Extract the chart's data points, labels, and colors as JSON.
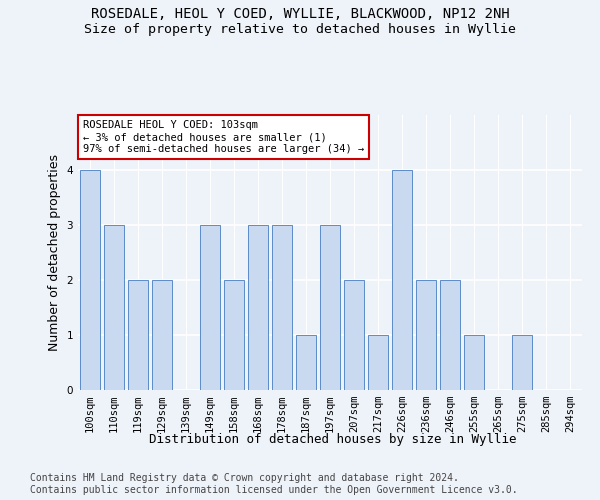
{
  "title1": "ROSEDALE, HEOL Y COED, WYLLIE, BLACKWOOD, NP12 2NH",
  "title2": "Size of property relative to detached houses in Wyllie",
  "xlabel": "Distribution of detached houses by size in Wyllie",
  "ylabel": "Number of detached properties",
  "categories": [
    "100sqm",
    "110sqm",
    "119sqm",
    "129sqm",
    "139sqm",
    "149sqm",
    "158sqm",
    "168sqm",
    "178sqm",
    "187sqm",
    "197sqm",
    "207sqm",
    "217sqm",
    "226sqm",
    "236sqm",
    "246sqm",
    "255sqm",
    "265sqm",
    "275sqm",
    "285sqm",
    "294sqm"
  ],
  "values": [
    4,
    3,
    2,
    2,
    0,
    3,
    2,
    3,
    3,
    1,
    3,
    2,
    1,
    4,
    2,
    2,
    1,
    0,
    1,
    0,
    0
  ],
  "bar_color": "#c9d9f0",
  "bar_edge_color": "#5b8cc8",
  "annotation_text": "ROSEDALE HEOL Y COED: 103sqm\n← 3% of detached houses are smaller (1)\n97% of semi-detached houses are larger (34) →",
  "annotation_box_color": "#ffffff",
  "annotation_box_edge_color": "#cc0000",
  "ylim": [
    0,
    5
  ],
  "yticks": [
    0,
    1,
    2,
    3,
    4
  ],
  "footer": "Contains HM Land Registry data © Crown copyright and database right 2024.\nContains public sector information licensed under the Open Government Licence v3.0.",
  "bg_color": "#eef2f9",
  "grid_color": "#ffffff",
  "title1_fontsize": 10,
  "title2_fontsize": 9.5,
  "xlabel_fontsize": 9,
  "ylabel_fontsize": 9,
  "tick_fontsize": 7.5,
  "footer_fontsize": 7,
  "annot_fontsize": 7.5
}
